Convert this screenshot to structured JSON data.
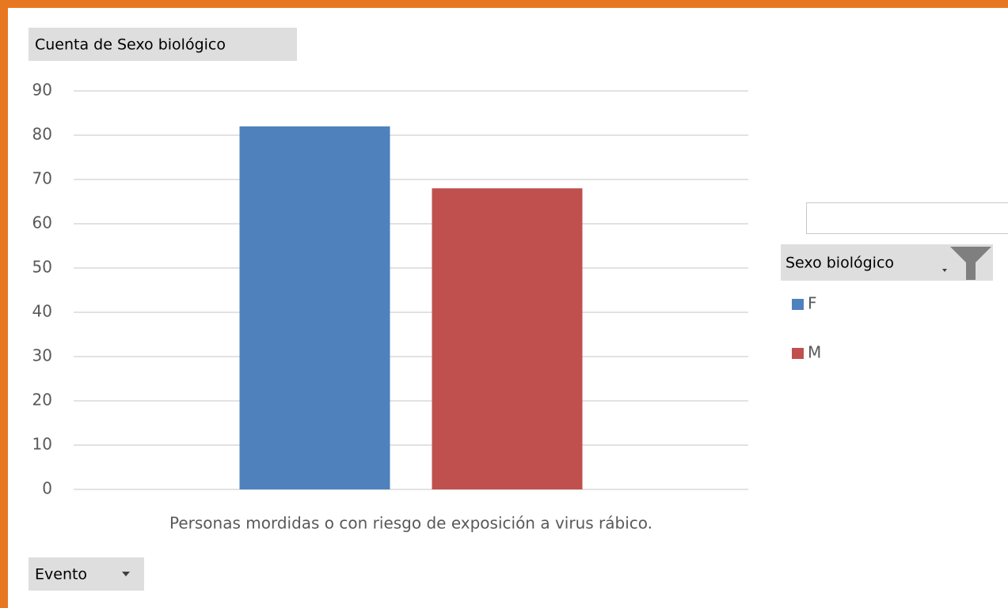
{
  "chart_data": {
    "type": "bar",
    "y_field": "Cuenta de Sexo biológico",
    "x_field": "Evento",
    "legend_title": "Sexo biológico",
    "categories": [
      "Personas mordidas o con riesgo de exposición a virus rábico."
    ],
    "series": [
      {
        "name": "F",
        "color": "#4f81bd",
        "values": [
          82
        ]
      },
      {
        "name": "M",
        "color": "#c0504d",
        "values": [
          68
        ]
      }
    ],
    "ylim": [
      0,
      90
    ],
    "yticks": [
      0,
      10,
      20,
      30,
      40,
      50,
      60,
      70,
      80,
      90
    ],
    "grid": true
  }
}
